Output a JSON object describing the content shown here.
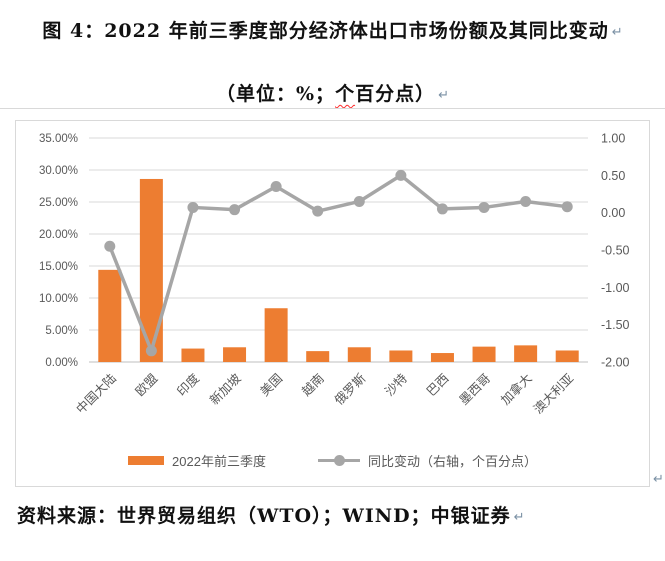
{
  "title": {
    "text": "图 4：2022 年前三季度部分经济体出口市场份额及其同比变动"
  },
  "subtitle": {
    "pre": "（单位：%；",
    "flagged": "个",
    "post": "百分点）"
  },
  "marks": {
    "paragraph_return": "↵"
  },
  "source": {
    "text": "资料来源：世界贸易组织（WTO）；WIND；中银证券"
  },
  "colors": {
    "bar": "#ED7D31",
    "line": "#A6A6A6",
    "grid": "#D9D9D9",
    "bottom_axis": "#BFBFBF",
    "axis_text": "#595959",
    "frame": "#D9D9D9",
    "spellcheck_underline": "#FF2D2D",
    "return_mark": "#7A90A4"
  },
  "chart_data": {
    "type": "bar",
    "combo": "bar+line",
    "title": "图 4：2022 年前三季度部分经济体出口市场份额及其同比变动",
    "subtitle": "（单位：%；个百分点）",
    "categories": [
      "中国大陆",
      "欧盟",
      "印度",
      "新加坡",
      "美国",
      "越南",
      "俄罗斯",
      "沙特",
      "巴西",
      "墨西哥",
      "加拿大",
      "澳大利亚"
    ],
    "series": [
      {
        "name": "2022年前三季度",
        "type": "bar",
        "axis": "left",
        "color": "#ED7D31",
        "values": [
          14.4,
          28.6,
          2.1,
          2.3,
          8.4,
          1.7,
          2.3,
          1.8,
          1.4,
          2.4,
          2.6,
          1.8
        ]
      },
      {
        "name": "同比变动（右轴，个百分点）",
        "type": "line",
        "axis": "right",
        "color": "#A6A6A6",
        "values": [
          -0.45,
          -1.85,
          0.07,
          0.04,
          0.35,
          0.02,
          0.15,
          0.5,
          0.05,
          0.07,
          0.15,
          0.08
        ]
      }
    ],
    "left_axis": {
      "min": 0,
      "max": 35,
      "step": 5,
      "ticks": [
        "35.00%",
        "30.00%",
        "25.00%",
        "20.00%",
        "15.00%",
        "10.00%",
        "5.00%",
        "0.00%"
      ],
      "unit": "%"
    },
    "right_axis": {
      "min": -2,
      "max": 1,
      "step": 0.5,
      "ticks": [
        "1.00",
        "0.50",
        "0.00",
        "-0.50",
        "-1.00",
        "-1.50",
        "-2.00"
      ],
      "unit": "个百分点"
    },
    "grid": true,
    "legend_position": "bottom",
    "xlabel": "",
    "ylabel": ""
  }
}
